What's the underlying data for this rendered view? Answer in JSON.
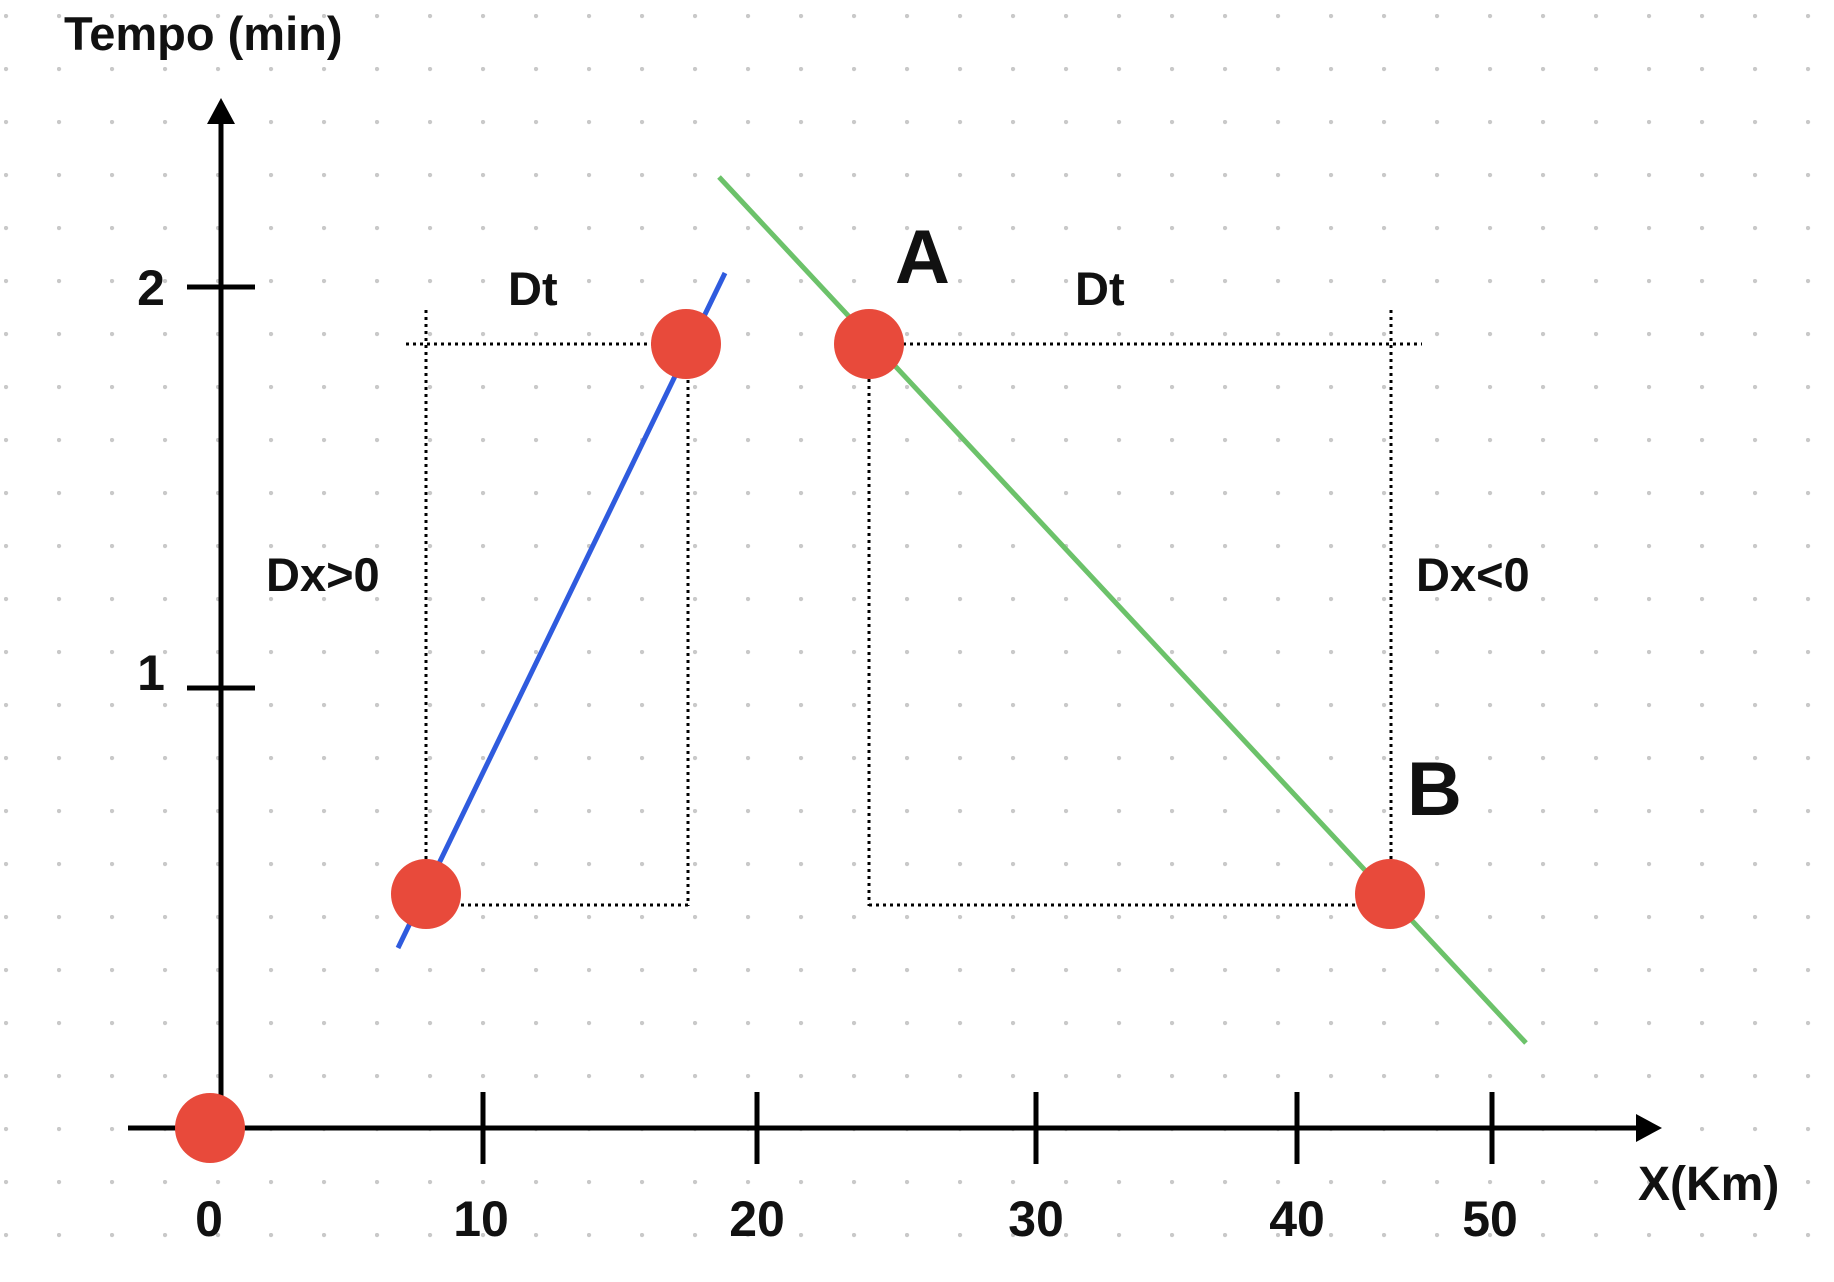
{
  "axes": {
    "y_title": "Tempo (min)",
    "x_title": "X(Km)",
    "x_ticks": [
      "0",
      "10",
      "20",
      "30",
      "40",
      "50"
    ],
    "y_ticks": [
      "1",
      "2"
    ]
  },
  "annotations": {
    "dt_left": "Dt",
    "dt_right": "Dt",
    "dx_positive": "Dx>0",
    "dx_negative": "Dx<0",
    "point_a": "A",
    "point_b": "B"
  },
  "colors": {
    "point": "#E84A3B",
    "blue_line": "#2F5BDE",
    "green_line": "#6CC26A",
    "background_dot": "#C9C9C9"
  }
}
